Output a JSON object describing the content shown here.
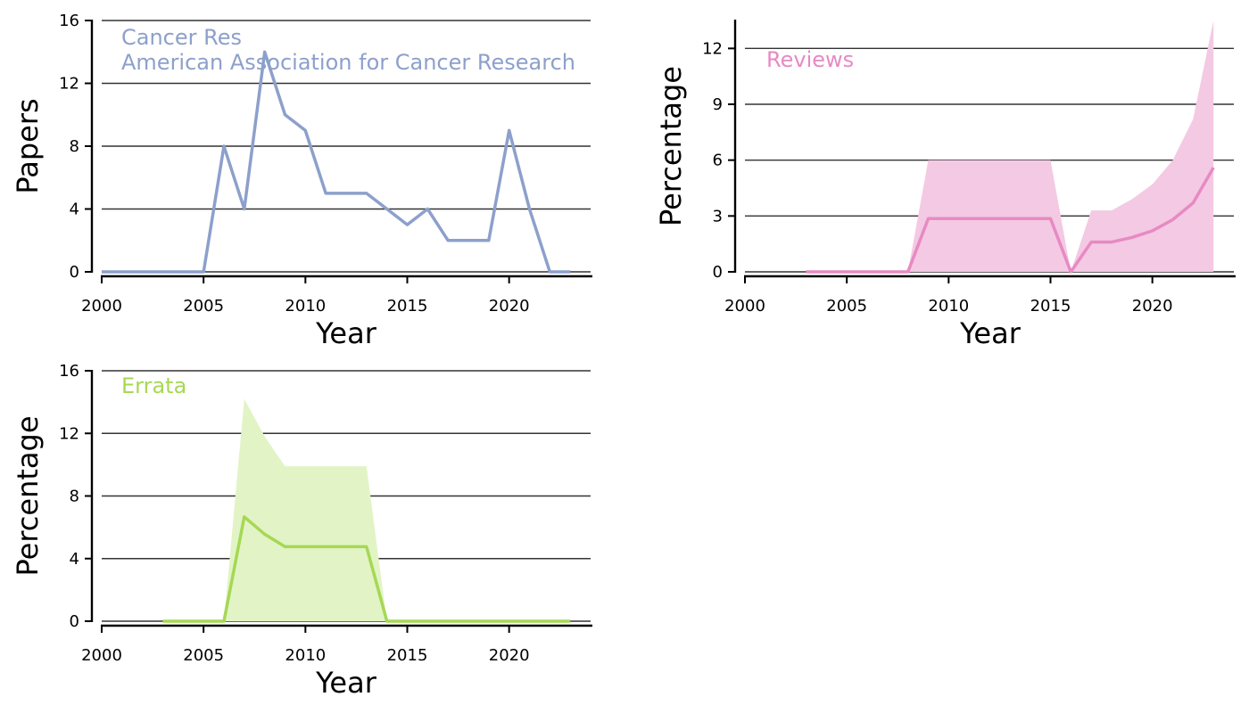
{
  "chart_data": [
    {
      "type": "line",
      "xlabel": "Year",
      "ylabel": "Papers",
      "xlim": [
        2000,
        24
      ],
      "ylim": [
        0,
        16
      ],
      "xticks": [
        "2000",
        "2005",
        "2010",
        "2015",
        "2020"
      ],
      "yticks": [
        "0",
        "4",
        "8",
        "12",
        "16"
      ],
      "grid": "horizontal",
      "color": "#8da0cb",
      "annotations": [
        "Cancer Res",
        "American Association for Cancer Research"
      ],
      "x": [
        2000,
        2001,
        2002,
        2003,
        2004,
        2005,
        2006,
        2007,
        2008,
        2009,
        2010,
        2011,
        2012,
        2013,
        2014,
        2015,
        2016,
        2017,
        2018,
        2019,
        2020,
        2021,
        2022,
        2023
      ],
      "series": [
        {
          "values": [
            0,
            0,
            0,
            0,
            0,
            0,
            8,
            4,
            14,
            10,
            9,
            5,
            5,
            5,
            4,
            3,
            4,
            2,
            2,
            2,
            9,
            4,
            0,
            0
          ]
        }
      ]
    },
    {
      "type": "area",
      "xlabel": "Year",
      "ylabel": "Percentage",
      "ylim": [
        0,
        13.5
      ],
      "xticks": [
        "2000",
        "2005",
        "2010",
        "2015",
        "2020"
      ],
      "yticks": [
        "0",
        "3",
        "6",
        "9",
        "12"
      ],
      "grid": "horizontal",
      "color": "#e78ac3",
      "band_color": "#f4c9e3",
      "annotations": [
        "Reviews"
      ],
      "x": [
        2003,
        2004,
        2005,
        2006,
        2007,
        2008,
        2009,
        2010,
        2011,
        2012,
        2013,
        2014,
        2015,
        2016,
        2017,
        2018,
        2019,
        2020,
        2021,
        2022,
        2023
      ],
      "series": [
        {
          "values": [
            0,
            0,
            0,
            0,
            0,
            0,
            2.86,
            2.86,
            2.86,
            2.86,
            2.86,
            2.86,
            2.86,
            0,
            1.6,
            1.6,
            1.85,
            2.2,
            2.8,
            3.7,
            5.6
          ],
          "upper": [
            0,
            0,
            0,
            0,
            0,
            0,
            6.0,
            6.0,
            6.0,
            6.0,
            6.0,
            6.0,
            6.0,
            0,
            3.3,
            3.3,
            3.9,
            4.7,
            6.0,
            8.2,
            13.5
          ],
          "lower": [
            0,
            0,
            0,
            0,
            0,
            0,
            0,
            0,
            0,
            0,
            0,
            0,
            0,
            0,
            0,
            0,
            0,
            0,
            0,
            0,
            0
          ]
        }
      ]
    },
    {
      "type": "area",
      "xlabel": "Year",
      "ylabel": "Percentage",
      "ylim": [
        0,
        16
      ],
      "xticks": [
        "2000",
        "2005",
        "2010",
        "2015",
        "2020"
      ],
      "yticks": [
        "0",
        "4",
        "8",
        "12",
        "16"
      ],
      "grid": "horizontal",
      "color": "#a6d854",
      "band_color": "#e2f4c6",
      "annotations": [
        "Errata"
      ],
      "x": [
        2003,
        2004,
        2005,
        2006,
        2007,
        2008,
        2009,
        2010,
        2011,
        2012,
        2013,
        2014,
        2015,
        2016,
        2017,
        2018,
        2019,
        2020,
        2021,
        2022,
        2023
      ],
      "series": [
        {
          "values": [
            0,
            0,
            0,
            0,
            6.67,
            5.56,
            4.76,
            4.76,
            4.76,
            4.76,
            4.76,
            0,
            0,
            0,
            0,
            0,
            0,
            0,
            0,
            0,
            0
          ],
          "upper": [
            0,
            0,
            0,
            0,
            14.2,
            11.8,
            9.9,
            9.9,
            9.9,
            9.9,
            9.9,
            0,
            0,
            0,
            0,
            0,
            0,
            0,
            0,
            0,
            0
          ],
          "lower": [
            0,
            0,
            0,
            0,
            0,
            0,
            0,
            0,
            0,
            0,
            0,
            0,
            0,
            0,
            0,
            0,
            0,
            0,
            0,
            0,
            0
          ]
        }
      ]
    }
  ]
}
